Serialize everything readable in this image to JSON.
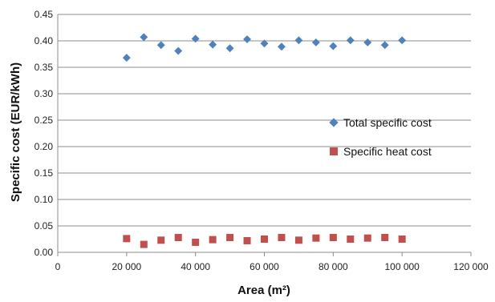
{
  "chart_data": {
    "type": "scatter",
    "title": "",
    "xlabel": "Area (m²)",
    "ylabel": "Specific cost (EUR/kWh)",
    "xlim": [
      0,
      120000
    ],
    "ylim": [
      0,
      0.45
    ],
    "x_ticks": [
      0,
      20000,
      40000,
      60000,
      80000,
      100000,
      120000
    ],
    "x_tick_labels": [
      "0",
      "20 000",
      "40 000",
      "60 000",
      "80 000",
      "100 000",
      "120 000"
    ],
    "y_ticks": [
      0,
      0.05,
      0.1,
      0.15,
      0.2,
      0.25,
      0.3,
      0.35,
      0.4,
      0.45
    ],
    "y_tick_labels": [
      "0.00",
      "0.05",
      "0.10",
      "0.15",
      "0.20",
      "0.25",
      "0.30",
      "0.35",
      "0.40",
      "0.45"
    ],
    "grid": "horizontal",
    "legend_position": "right",
    "series": [
      {
        "name": "Total specific cost",
        "marker": "diamond",
        "color": "#4F81BD",
        "x": [
          20000,
          25000,
          30000,
          35000,
          40000,
          45000,
          50000,
          55000,
          60000,
          65000,
          70000,
          75000,
          80000,
          85000,
          90000,
          95000,
          100000
        ],
        "y": [
          0.368,
          0.407,
          0.392,
          0.381,
          0.404,
          0.393,
          0.386,
          0.403,
          0.395,
          0.389,
          0.401,
          0.397,
          0.39,
          0.401,
          0.397,
          0.392,
          0.401
        ]
      },
      {
        "name": "Specific heat cost",
        "marker": "square",
        "color": "#C0504D",
        "x": [
          20000,
          25000,
          30000,
          35000,
          40000,
          45000,
          50000,
          55000,
          60000,
          65000,
          70000,
          75000,
          80000,
          85000,
          90000,
          95000,
          100000
        ],
        "y": [
          0.026,
          0.015,
          0.023,
          0.028,
          0.019,
          0.024,
          0.028,
          0.022,
          0.025,
          0.028,
          0.023,
          0.027,
          0.028,
          0.025,
          0.027,
          0.028,
          0.025
        ]
      }
    ]
  }
}
